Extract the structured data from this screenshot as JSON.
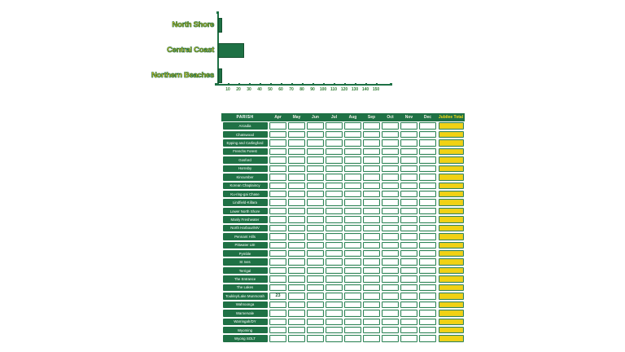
{
  "chart_data": {
    "type": "bar",
    "orientation": "horizontal",
    "title": "",
    "xlabel": "",
    "ylabel": "",
    "categories": [
      "North Shore",
      "Central Coast",
      "Northern Beaches"
    ],
    "values": [
      2,
      23,
      2
    ],
    "xlim": [
      0,
      160
    ],
    "xticks": [
      10,
      20,
      30,
      40,
      50,
      60,
      70,
      80,
      90,
      100,
      110,
      120,
      130,
      140,
      150
    ],
    "grid": false,
    "legend": null,
    "bar_color": "#1e7145",
    "category_label_fill": "#f2cc0d",
    "category_label_outline": "#1b6b3f",
    "axis_color": "#1e7145"
  },
  "table": {
    "columns": [
      "PARISH",
      "Apr",
      "May",
      "Jun",
      "Jul",
      "Aug",
      "Sep",
      "Oct",
      "Nov",
      "Dec",
      "Jubilee Total"
    ],
    "rows": [
      {
        "parish": "Arcadia",
        "monthly": [
          "",
          "",
          "",
          "",
          "",
          "",
          "",
          "",
          ""
        ],
        "total": ""
      },
      {
        "parish": "Chatswood",
        "monthly": [
          "",
          "",
          "",
          "",
          "",
          "",
          "",
          "",
          ""
        ],
        "total": ""
      },
      {
        "parish": "Epping and Carlingford",
        "monthly": [
          "",
          "",
          "",
          "",
          "",
          "",
          "",
          "",
          ""
        ],
        "total": ""
      },
      {
        "parish": "Frenchs Forest",
        "monthly": [
          "",
          "",
          "",
          "",
          "",
          "",
          "",
          "",
          ""
        ],
        "total": ""
      },
      {
        "parish": "Gosford",
        "monthly": [
          "",
          "",
          "",
          "",
          "",
          "",
          "",
          "",
          ""
        ],
        "total": ""
      },
      {
        "parish": "Hornsby",
        "monthly": [
          "",
          "",
          "",
          "",
          "",
          "",
          "",
          "",
          ""
        ],
        "total": ""
      },
      {
        "parish": "Kincumber",
        "monthly": [
          "",
          "",
          "",
          "",
          "",
          "",
          "",
          "",
          ""
        ],
        "total": ""
      },
      {
        "parish": "Korean Chaplaincy",
        "monthly": [
          "",
          "",
          "",
          "",
          "",
          "",
          "",
          "",
          ""
        ],
        "total": ""
      },
      {
        "parish": "Ku-ring-gai Chase",
        "monthly": [
          "",
          "",
          "",
          "",
          "",
          "",
          "",
          "",
          ""
        ],
        "total": ""
      },
      {
        "parish": "Lindfield-Killara",
        "monthly": [
          "",
          "",
          "",
          "",
          "",
          "",
          "",
          "",
          ""
        ],
        "total": ""
      },
      {
        "parish": "Lower North Shore",
        "monthly": [
          "",
          "",
          "",
          "",
          "",
          "",
          "",
          "",
          ""
        ],
        "total": ""
      },
      {
        "parish": "Manly Freshwater",
        "monthly": [
          "",
          "",
          "",
          "",
          "",
          "",
          "",
          "",
          ""
        ],
        "total": ""
      },
      {
        "parish": "North Harbour/MV",
        "monthly": [
          "",
          "",
          "",
          "",
          "",
          "",
          "",
          "",
          ""
        ],
        "total": ""
      },
      {
        "parish": "Pennant Hills",
        "monthly": [
          "",
          "",
          "",
          "",
          "",
          "",
          "",
          "",
          ""
        ],
        "total": ""
      },
      {
        "parish": "Pittwater LBI",
        "monthly": [
          "",
          "",
          "",
          "",
          "",
          "",
          "",
          "",
          ""
        ],
        "total": ""
      },
      {
        "parish": "Pymble",
        "monthly": [
          "",
          "",
          "",
          "",
          "",
          "",
          "",
          "",
          ""
        ],
        "total": ""
      },
      {
        "parish": "St Ives",
        "monthly": [
          "",
          "",
          "",
          "",
          "",
          "",
          "",
          "",
          ""
        ],
        "total": ""
      },
      {
        "parish": "Terrigal",
        "monthly": [
          "",
          "",
          "",
          "",
          "",
          "",
          "",
          "",
          ""
        ],
        "total": ""
      },
      {
        "parish": "The Entrance",
        "monthly": [
          "",
          "",
          "",
          "",
          "",
          "",
          "",
          "",
          ""
        ],
        "total": ""
      },
      {
        "parish": "The Lakes",
        "monthly": [
          "",
          "",
          "",
          "",
          "",
          "",
          "",
          "",
          ""
        ],
        "total": ""
      },
      {
        "parish": "Toukley/Lake Munmorah",
        "monthly": [
          "23",
          "",
          "",
          "",
          "",
          "",
          "",
          "",
          ""
        ],
        "total": ""
      },
      {
        "parish": "Wahroonga",
        "monthly": [
          "",
          "",
          "",
          "",
          "",
          "",
          "",
          "",
          ""
        ],
        "total": ""
      },
      {
        "parish": "Warnervale",
        "monthly": [
          "",
          "",
          "",
          "",
          "",
          "",
          "",
          "",
          ""
        ],
        "total": ""
      },
      {
        "parish": "Warringah/DY",
        "monthly": [
          "",
          "",
          "",
          "",
          "",
          "",
          "",
          "",
          ""
        ],
        "total": ""
      },
      {
        "parish": "Wyoming",
        "monthly": [
          "",
          "",
          "",
          "",
          "",
          "",
          "",
          "",
          ""
        ],
        "total": ""
      },
      {
        "parish": "Wyong SOLT",
        "monthly": [
          "",
          "",
          "",
          "",
          "",
          "",
          "",
          "",
          ""
        ],
        "total": ""
      }
    ],
    "colors": {
      "header_bg": "#1f7145",
      "parish_bg": "#1f7145",
      "total_bg": "#f1d212",
      "cell_border": "#2e8457",
      "header_total_text": "#f7d917",
      "value_text": "#1d5c38"
    }
  }
}
